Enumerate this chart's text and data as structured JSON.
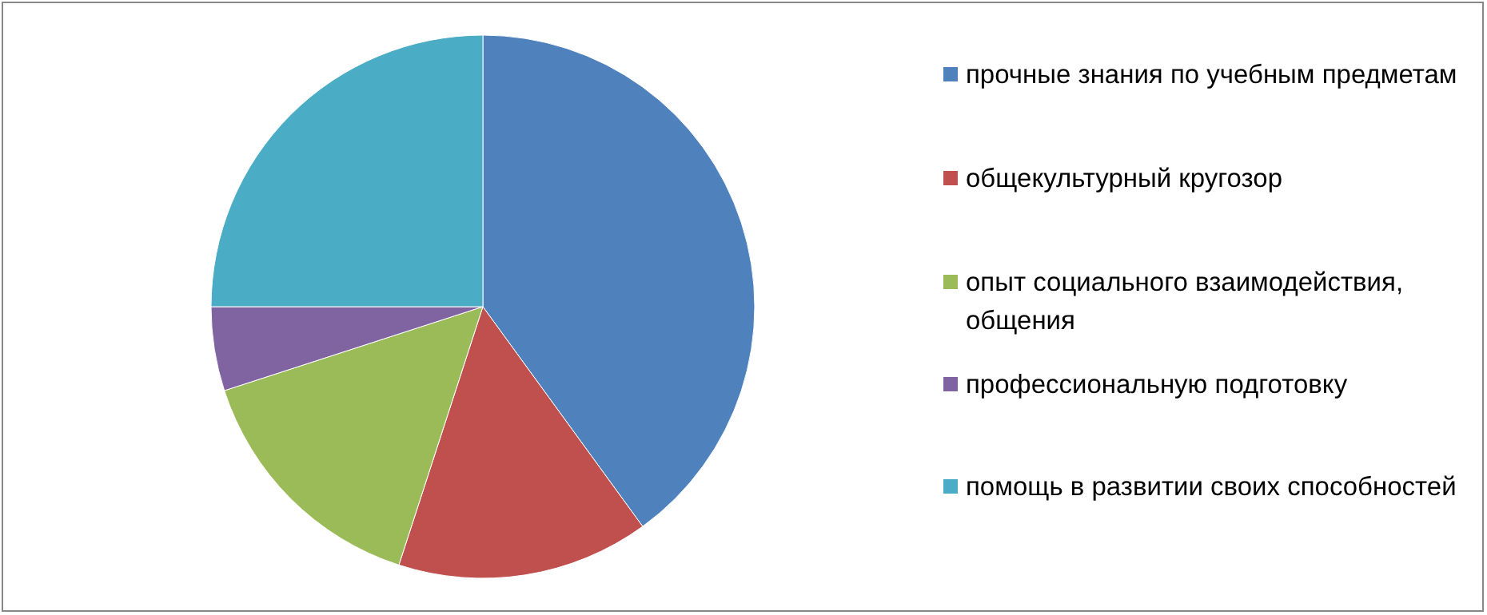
{
  "chart_data": {
    "type": "pie",
    "categories": [
      "прочные знания по учебным предметам",
      "общекультурный кругозор",
      "опыт социального взаимодействия, общения",
      "профессиональную подготовку",
      "помощь в развитии своих способностей"
    ],
    "values": [
      40,
      15,
      15,
      5,
      25
    ],
    "colors": [
      "#4f81bd",
      "#c0504d",
      "#9bbb59",
      "#8064a2",
      "#4bacc6"
    ],
    "legend": "right"
  }
}
